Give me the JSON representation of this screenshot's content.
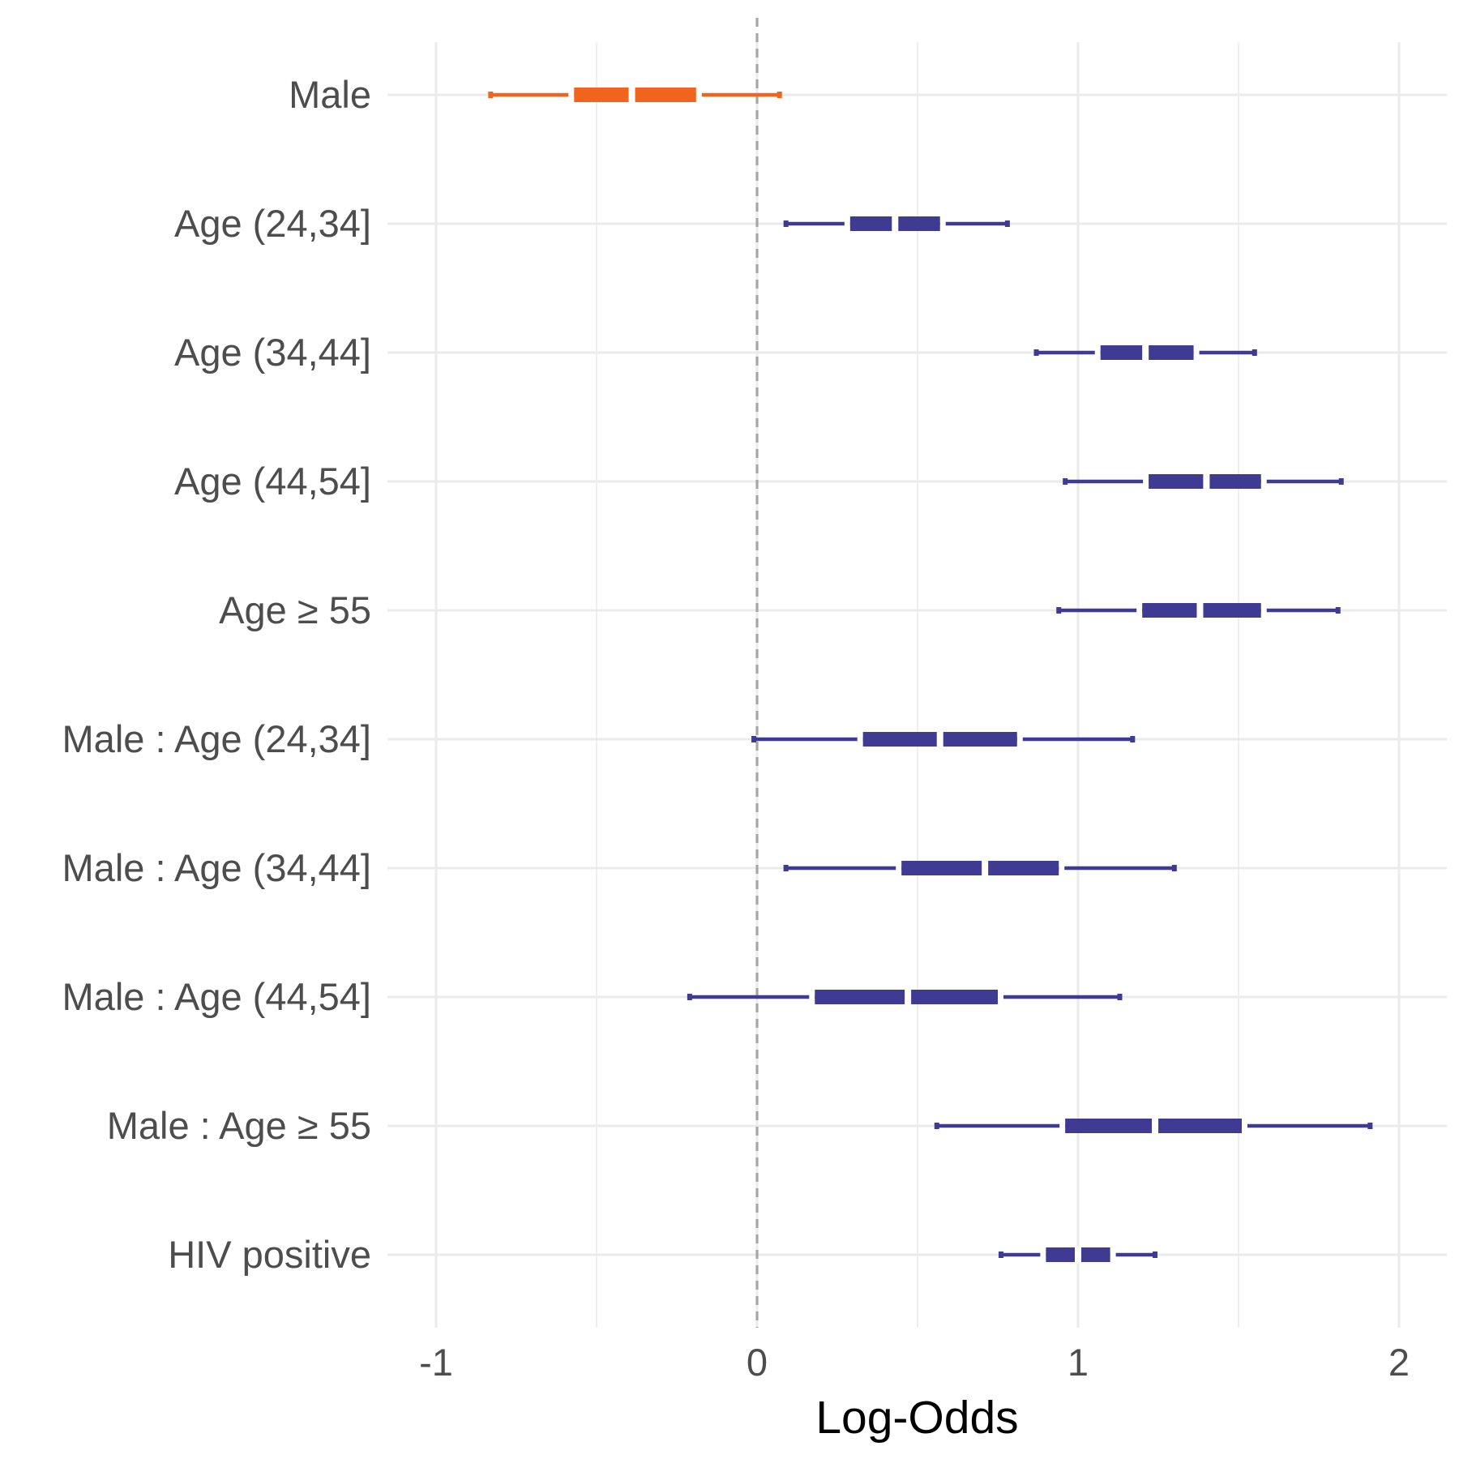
{
  "chart_data": {
    "type": "interval",
    "xlabel": "Log-Odds",
    "xlim": [
      -1.15,
      2.15
    ],
    "xticks": [
      -1,
      0,
      1,
      2
    ],
    "xtick_labels": [
      "-1",
      "0",
      "1",
      "2"
    ],
    "reference_line": 0,
    "grid": true,
    "legend": "none",
    "colors": {
      "negative": "#F0641E",
      "positive": "#3F3A92",
      "grid": "#ebebeb",
      "reference": "#a6a6a6"
    },
    "rows": [
      {
        "label": "Male",
        "median": -0.39,
        "inner_lo": -0.57,
        "inner_hi": -0.19,
        "outer_lo": -0.83,
        "outer_hi": 0.07,
        "color": "#F0641E"
      },
      {
        "label": "Age (24,34]",
        "median": 0.43,
        "inner_lo": 0.29,
        "inner_hi": 0.57,
        "outer_lo": 0.09,
        "outer_hi": 0.78,
        "color": "#3F3A92"
      },
      {
        "label": "Age (34,44]",
        "median": 1.21,
        "inner_lo": 1.07,
        "inner_hi": 1.36,
        "outer_lo": 0.87,
        "outer_hi": 1.55,
        "color": "#3F3A92"
      },
      {
        "label": "Age (44,54]",
        "median": 1.4,
        "inner_lo": 1.22,
        "inner_hi": 1.57,
        "outer_lo": 0.96,
        "outer_hi": 1.82,
        "color": "#3F3A92"
      },
      {
        "label": "Age ≥ 55",
        "median": 1.38,
        "inner_lo": 1.2,
        "inner_hi": 1.57,
        "outer_lo": 0.94,
        "outer_hi": 1.81,
        "color": "#3F3A92"
      },
      {
        "label": "Male : Age (24,34]",
        "median": 0.57,
        "inner_lo": 0.33,
        "inner_hi": 0.81,
        "outer_lo": -0.01,
        "outer_hi": 1.17,
        "color": "#3F3A92"
      },
      {
        "label": "Male : Age (34,44]",
        "median": 0.71,
        "inner_lo": 0.45,
        "inner_hi": 0.94,
        "outer_lo": 0.09,
        "outer_hi": 1.3,
        "color": "#3F3A92"
      },
      {
        "label": "Male : Age (44,54]",
        "median": 0.47,
        "inner_lo": 0.18,
        "inner_hi": 0.75,
        "outer_lo": -0.21,
        "outer_hi": 1.13,
        "color": "#3F3A92"
      },
      {
        "label": "Male : Age ≥ 55",
        "median": 1.24,
        "inner_lo": 0.96,
        "inner_hi": 1.51,
        "outer_lo": 0.56,
        "outer_hi": 1.91,
        "color": "#3F3A92"
      },
      {
        "label": "HIV positive",
        "median": 1.0,
        "inner_lo": 0.9,
        "inner_hi": 1.1,
        "outer_lo": 0.76,
        "outer_hi": 1.24,
        "color": "#3F3A92"
      }
    ]
  }
}
